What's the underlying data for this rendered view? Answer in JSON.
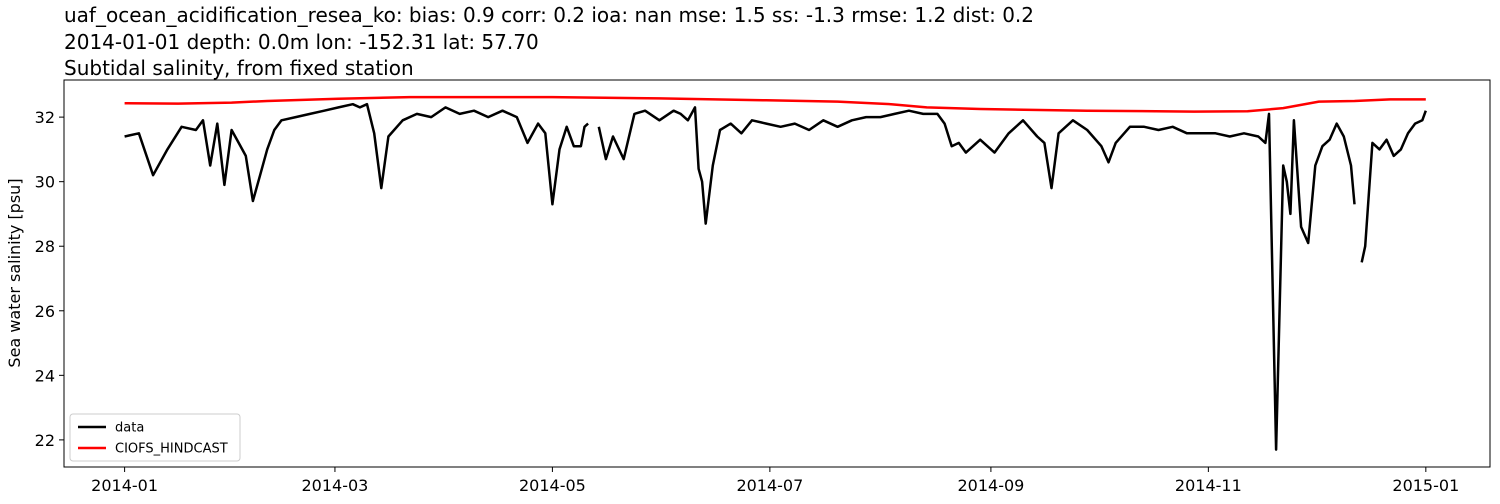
{
  "chart_data": {
    "type": "line",
    "title_lines": [
      "uaf_ocean_acidification_resea_ko: bias: 0.9  corr: 0.2  ioa: nan  mse: 1.5  ss: -1.3  rmse: 1.2  dist: 0.2",
      "2014-01-01 depth: 0.0m lon: -152.31 lat: 57.70",
      "Subtidal salinity, from fixed station"
    ],
    "ylabel": "Sea water salinity [psu]",
    "xlim": [
      -17,
      383
    ],
    "xticks": [
      {
        "value": 0,
        "label": "2014-01"
      },
      {
        "value": 59,
        "label": "2014-03"
      },
      {
        "value": 120,
        "label": "2014-05"
      },
      {
        "value": 181,
        "label": "2014-07"
      },
      {
        "value": 243,
        "label": "2014-09"
      },
      {
        "value": 304,
        "label": "2014-11"
      },
      {
        "value": 365,
        "label": "2015-01"
      }
    ],
    "ylim": [
      21.16,
      33.15
    ],
    "yticks": [
      22,
      24,
      26,
      28,
      30,
      32
    ],
    "grid": false,
    "legend": "lower left",
    "series": [
      {
        "name": "data",
        "color": "#000000",
        "x": [
          0,
          4,
          8,
          12,
          16,
          20,
          22,
          24,
          26,
          28,
          30,
          32,
          34,
          36,
          38,
          40,
          42,
          44,
          48,
          52,
          56,
          60,
          64,
          66,
          68,
          70,
          72,
          74,
          78,
          82,
          86,
          90,
          94,
          98,
          102,
          106,
          110,
          113,
          116,
          118,
          120,
          122,
          124,
          126,
          128,
          129,
          130,
          131,
          133,
          135,
          137,
          140,
          143,
          146,
          150,
          154,
          156,
          158,
          160,
          161,
          162,
          163,
          165,
          167,
          170,
          173,
          176,
          180,
          184,
          188,
          192,
          196,
          200,
          204,
          208,
          212,
          216,
          220,
          224,
          228,
          230,
          232,
          234,
          236,
          240,
          244,
          248,
          252,
          256,
          258,
          260,
          262,
          266,
          270,
          274,
          276,
          278,
          282,
          286,
          290,
          294,
          298,
          302,
          306,
          310,
          314,
          318,
          320,
          321,
          323,
          325,
          326,
          327,
          328,
          330,
          332,
          334,
          336,
          338,
          340,
          342,
          344,
          345,
          346,
          347,
          348,
          350,
          352,
          354,
          356,
          358,
          360,
          362,
          364,
          365
        ],
        "values": [
          31.4,
          31.5,
          30.2,
          31.0,
          31.7,
          31.6,
          31.9,
          30.5,
          31.8,
          29.9,
          31.6,
          31.2,
          30.8,
          29.4,
          30.2,
          31.0,
          31.6,
          31.9,
          32.0,
          32.1,
          32.2,
          32.3,
          32.4,
          32.3,
          32.4,
          31.5,
          29.8,
          31.4,
          31.9,
          32.1,
          32.0,
          32.3,
          32.1,
          32.2,
          32.0,
          32.2,
          32.0,
          31.2,
          31.8,
          31.5,
          29.3,
          31.0,
          31.7,
          31.1,
          31.1,
          31.7,
          31.8,
          null,
          31.7,
          30.7,
          31.4,
          30.7,
          32.1,
          32.2,
          31.9,
          32.2,
          32.1,
          31.9,
          32.3,
          30.4,
          30.0,
          28.7,
          30.5,
          31.6,
          31.8,
          31.5,
          31.9,
          31.8,
          31.7,
          31.8,
          31.6,
          31.9,
          31.7,
          31.9,
          32.0,
          32.0,
          32.1,
          32.2,
          32.1,
          32.1,
          31.8,
          31.1,
          31.2,
          30.9,
          31.3,
          30.9,
          31.5,
          31.9,
          31.4,
          31.2,
          29.8,
          31.5,
          31.9,
          31.6,
          31.1,
          30.6,
          31.2,
          31.7,
          31.7,
          31.6,
          31.7,
          31.5,
          31.5,
          31.5,
          31.4,
          31.5,
          31.4,
          31.2,
          32.1,
          21.7,
          30.5,
          30.0,
          29.0,
          31.9,
          28.6,
          28.1,
          30.5,
          31.1,
          31.3,
          31.8,
          31.4,
          30.5,
          29.3,
          null,
          27.5,
          28.0,
          31.2,
          31.0,
          31.3,
          30.8,
          31.0,
          31.5,
          31.8,
          31.9,
          32.2
        ]
      },
      {
        "name": "CIOFS_HINDCAST",
        "color": "#ff0000",
        "x": [
          0,
          15,
          30,
          40,
          60,
          80,
          120,
          150,
          180,
          200,
          215,
          225,
          240,
          270,
          300,
          315,
          325,
          335,
          345,
          355,
          365
        ],
        "values": [
          32.43,
          32.42,
          32.45,
          32.5,
          32.57,
          32.62,
          32.62,
          32.58,
          32.52,
          32.48,
          32.4,
          32.3,
          32.25,
          32.2,
          32.17,
          32.18,
          32.28,
          32.48,
          32.5,
          32.55,
          32.55
        ]
      }
    ]
  }
}
